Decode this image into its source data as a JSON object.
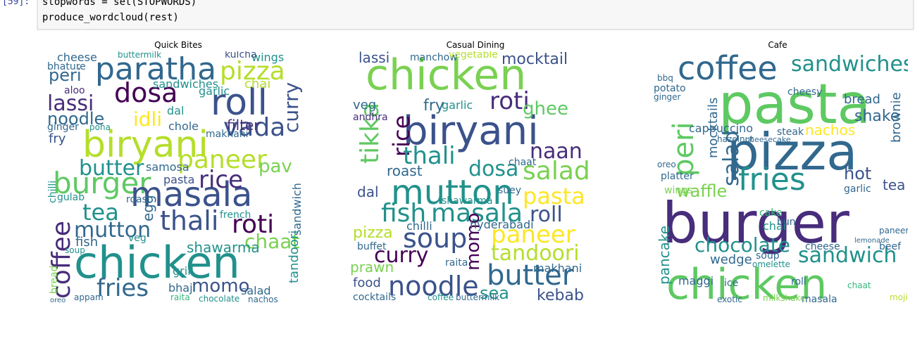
{
  "code": {
    "prompt": "[59]:",
    "lines": [
      "stopwords = set(STOPWORDS)",
      "produce_wordcloud(rest)"
    ]
  },
  "panels": [
    {
      "title": "Quick Bites",
      "words": [
        "paratha",
        "pizza",
        "dosa",
        "roll",
        "lassi",
        "noodle",
        "idli",
        "biryani",
        "vada",
        "paneer",
        "burger",
        "masala",
        "pav",
        "rice",
        "tea",
        "thali",
        "roti",
        "mutton",
        "chaat",
        "chicken",
        "fries",
        "momo",
        "coffee",
        "butter",
        "peri",
        "cheese",
        "sandwiches",
        "wings",
        "curry",
        "filter",
        "samosa",
        "shawarma",
        "salad",
        "grill",
        "bhaji",
        "chocolate",
        "nachos",
        "tandoori",
        "sandwich",
        "french",
        "makhani",
        "garlic",
        "dal",
        "ginger",
        "fry",
        "aloo",
        "bhature",
        "kulcha",
        "buttermilk",
        "chole",
        "poha",
        "chai",
        "egg",
        "fish",
        "veg",
        "soup",
        "pasta",
        "roast",
        "gulab",
        "raita",
        "appam",
        "oreo",
        "bread",
        "chilli"
      ]
    },
    {
      "title": "Casual Dining",
      "words": [
        "chicken",
        "lassi",
        "mocktail",
        "manchow",
        "vegetable",
        "biryani",
        "roti",
        "ghee",
        "fry",
        "tikka",
        "rice",
        "thali",
        "naan",
        "salad",
        "dosa",
        "roast",
        "mutton",
        "pasta",
        "dal",
        "masala",
        "fish",
        "roll",
        "paneer",
        "pizza",
        "soup",
        "chilli",
        "curry",
        "tandoori",
        "momo",
        "noodle",
        "butter",
        "kebab",
        "sea",
        "prawn",
        "food",
        "cocktails",
        "hyderabadi",
        "makhani",
        "shawarma",
        "chaat",
        "buffet",
        "raita",
        "veg",
        "andhra",
        "coffee",
        "buttermilk",
        "garlic",
        "suey"
      ]
    },
    {
      "title": "Cafe",
      "words": [
        "coffee",
        "sandwiches",
        "pasta",
        "peri",
        "pizza",
        "fries",
        "burger",
        "chicken",
        "chocolate",
        "sandwich",
        "salad",
        "mocktails",
        "cappuccino",
        "nachos",
        "shake",
        "brownie",
        "bread",
        "hot",
        "tea",
        "cheesy",
        "waffle",
        "pancake",
        "wedge",
        "maggi",
        "steak",
        "garlic",
        "cheese",
        "soup",
        "omelette",
        "ginger",
        "bbq",
        "potato",
        "oreo",
        "wings",
        "platter",
        "beef",
        "chai",
        "paneer",
        "masala",
        "mojito",
        "exotic",
        "milkshake",
        "roll",
        "lemonade",
        "chaat",
        "ice",
        "cake",
        "bun",
        "hazelnut",
        "cheesecake"
      ]
    }
  ]
}
